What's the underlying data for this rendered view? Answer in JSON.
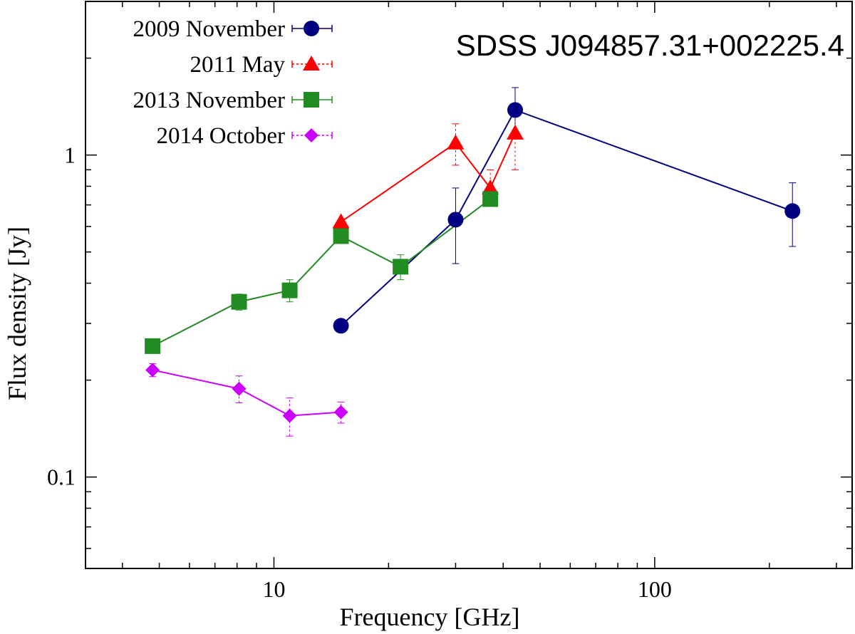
{
  "chart_data": {
    "type": "scatter",
    "title": "SDSS J094857.31+002225.4",
    "xlabel": "Frequency [GHz]",
    "ylabel": "Flux density [Jy]",
    "xscale": "log",
    "yscale": "log",
    "xlim": [
      3.2,
      330
    ],
    "ylim": [
      0.052,
      3.0
    ],
    "x_ticks": [
      {
        "value": 10,
        "label": "10"
      },
      {
        "value": 100,
        "label": "100"
      }
    ],
    "y_ticks": [
      {
        "value": 0.1,
        "label": "0.1"
      },
      {
        "value": 1,
        "label": "1"
      }
    ],
    "legend_position": "top-left",
    "series": [
      {
        "name": "2009 November",
        "color": "#000080",
        "marker": "circle",
        "line_style": "solid",
        "points": [
          {
            "x": 15,
            "y": 0.295
          },
          {
            "x": 30,
            "y": 0.63,
            "err": [
              0.46,
              0.79
            ]
          },
          {
            "x": 43,
            "y": 1.38,
            "err": [
              1.15,
              1.62
            ]
          },
          {
            "x": 230,
            "y": 0.67,
            "err": [
              0.52,
              0.82
            ]
          }
        ]
      },
      {
        "name": "2011 May",
        "color": "#ff0000",
        "marker": "triangle",
        "line_style": "dashed",
        "points": [
          {
            "x": 15,
            "y": 0.62
          },
          {
            "x": 30,
            "y": 1.09,
            "err": [
              0.93,
              1.25
            ]
          },
          {
            "x": 37,
            "y": 0.79,
            "err": [
              0.7,
              0.9
            ]
          },
          {
            "x": 43,
            "y": 1.17,
            "err": [
              0.9,
              1.44
            ]
          }
        ]
      },
      {
        "name": "2013 November",
        "color": "#228b22",
        "marker": "square",
        "line_style": "solid",
        "points": [
          {
            "x": 4.8,
            "y": 0.255
          },
          {
            "x": 8.1,
            "y": 0.35,
            "err": [
              0.33,
              0.37
            ]
          },
          {
            "x": 11,
            "y": 0.38,
            "err": [
              0.35,
              0.41
            ]
          },
          {
            "x": 15,
            "y": 0.56
          },
          {
            "x": 21.5,
            "y": 0.45,
            "err": [
              0.41,
              0.49
            ]
          },
          {
            "x": 37,
            "y": 0.73,
            "err": [
              0.7,
              0.76
            ]
          }
        ]
      },
      {
        "name": "2014 October",
        "color": "#cc00ff",
        "marker": "diamond",
        "line_style": "dashed",
        "points": [
          {
            "x": 4.8,
            "y": 0.215,
            "err": [
              0.205,
              0.225
            ]
          },
          {
            "x": 8.1,
            "y": 0.188,
            "err": [
              0.17,
              0.206
            ]
          },
          {
            "x": 11,
            "y": 0.155,
            "err": [
              0.134,
              0.176
            ]
          },
          {
            "x": 15,
            "y": 0.159,
            "err": [
              0.147,
              0.171
            ]
          }
        ]
      }
    ]
  }
}
